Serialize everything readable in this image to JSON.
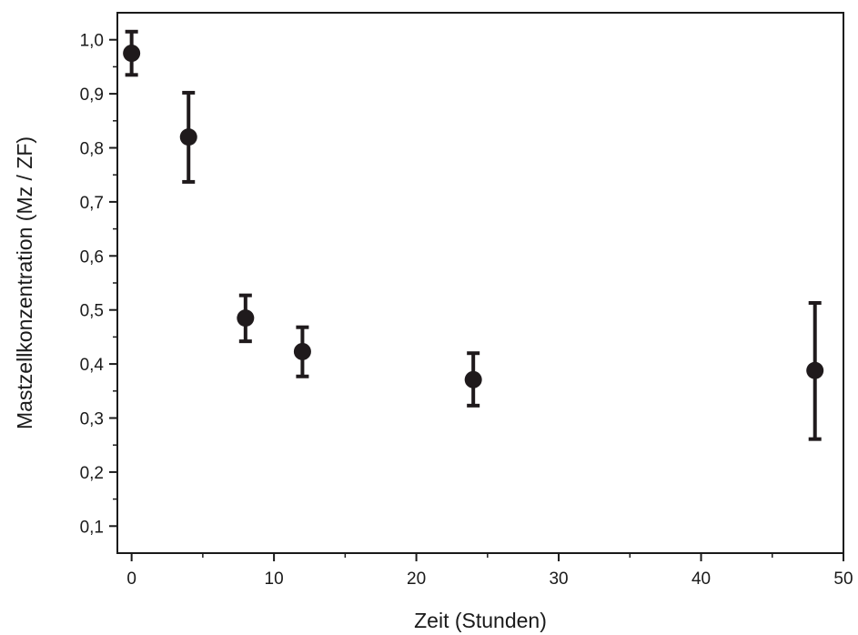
{
  "chart_data": {
    "type": "scatter",
    "title": "",
    "xlabel": "Zeit (Stunden)",
    "ylabel": "Mastzellkonzentration (Mz / ZF)",
    "xlim": [
      -1,
      50
    ],
    "ylim": [
      0.05,
      1.05
    ],
    "x_ticks": [
      0,
      10,
      20,
      30,
      40,
      50
    ],
    "x_tick_labels": [
      "0",
      "10",
      "20",
      "30",
      "40",
      "50"
    ],
    "y_ticks": [
      0.1,
      0.2,
      0.3,
      0.4,
      0.5,
      0.6,
      0.7,
      0.8,
      0.9,
      1.0
    ],
    "y_tick_labels": [
      "0,1",
      "0,2",
      "0,3",
      "0,4",
      "0,5",
      "0,6",
      "0,7",
      "0,8",
      "0,9",
      "1,0"
    ],
    "grid": false,
    "legend": "none",
    "marker_color": "#1f1a1c",
    "series": [
      {
        "x": [
          0,
          4,
          8,
          12,
          24,
          48
        ],
        "y": [
          0.975,
          0.82,
          0.485,
          0.423,
          0.371,
          0.388
        ],
        "error_low": [
          0.935,
          0.737,
          0.442,
          0.377,
          0.323,
          0.261
        ],
        "error_high": [
          1.015,
          0.902,
          0.527,
          0.468,
          0.42,
          0.513
        ]
      }
    ]
  }
}
